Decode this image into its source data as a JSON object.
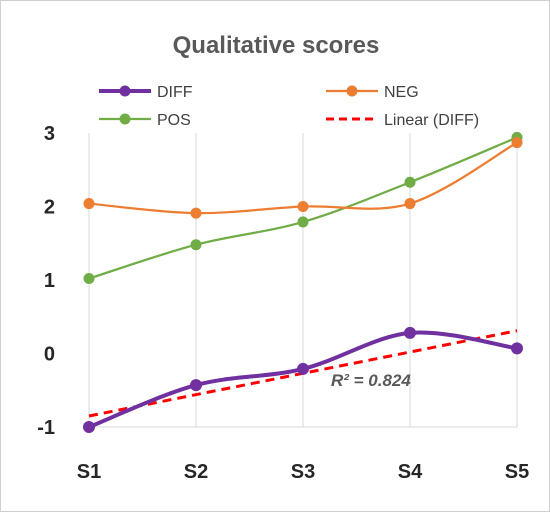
{
  "chart_data": {
    "type": "line",
    "title": "Qualitative scores",
    "categories": [
      "S1",
      "S2",
      "S3",
      "S4",
      "S5"
    ],
    "yticks": [
      "3",
      "2",
      "1",
      "0",
      "-1"
    ],
    "ylim": [
      -1,
      3
    ],
    "grid": "vertical",
    "legend_position": "top",
    "series": [
      {
        "name": "DIFF",
        "values": [
          -1.0,
          -0.43,
          -0.21,
          0.28,
          0.07
        ],
        "color": "#7030a0",
        "smooth": true
      },
      {
        "name": "NEG",
        "values": [
          2.04,
          1.91,
          2.0,
          2.04,
          2.87
        ],
        "color": "#ed7d31",
        "smooth": true
      },
      {
        "name": "POS",
        "values": [
          1.02,
          1.48,
          1.79,
          2.33,
          2.94
        ],
        "color": "#70ad47",
        "smooth": true
      }
    ],
    "trendline": {
      "name": "Linear (DIFF)",
      "start": -0.85,
      "end": 0.31,
      "color": "#ff0000",
      "style": "dashed",
      "annotation": "R² = 0.824"
    }
  }
}
